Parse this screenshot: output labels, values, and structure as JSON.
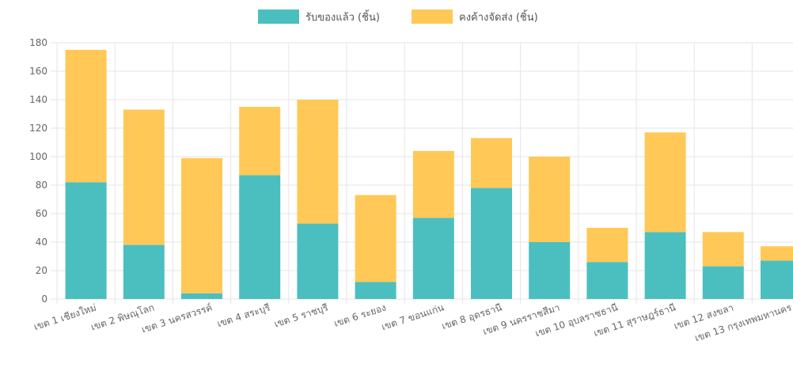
{
  "colors": {
    "received": "#4bbfbf",
    "pending": "#ffc857",
    "grid": "#e6e6e6",
    "axis_text": "#666666"
  },
  "chart_data": {
    "type": "bar",
    "stacked": true,
    "categories": [
      "เขต 1 เชียงใหม่",
      "เขต 2 พิษณุโลก",
      "เขต 3 นครสวรรค์",
      "เขต 4 สระบุรี",
      "เขต 5 ราชบุรี",
      "เขต 6 ระยอง",
      "เขต 7 ขอนแก่น",
      "เขต 8 อุดรธานี",
      "เขต 9 นครราชสีมา",
      "เขต 10 อุบลราชธานี",
      "เขต 11 สุราษฎร์ธานี",
      "เขต 12 สงขลา",
      "เขต 13 กรุงเทพมหานคร"
    ],
    "series": [
      {
        "name": "รับของแล้ว (ชิ้น)",
        "values": [
          82,
          38,
          4,
          87,
          53,
          12,
          57,
          78,
          40,
          26,
          47,
          23,
          27
        ]
      },
      {
        "name": "คงค้างจัดส่ง (ชิ้น)",
        "values": [
          93,
          95,
          95,
          48,
          87,
          61,
          47,
          35,
          60,
          24,
          70,
          24,
          10
        ]
      }
    ],
    "ylim": [
      0,
      180
    ],
    "yticks": [
      "0",
      "20",
      "40",
      "60",
      "80",
      "100",
      "120",
      "140",
      "160",
      "180"
    ],
    "grid": true,
    "legend_position": "top"
  }
}
